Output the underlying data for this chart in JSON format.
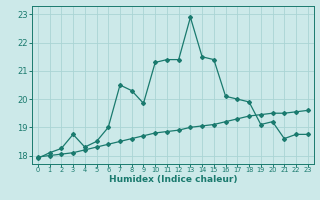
{
  "title": "",
  "xlabel": "Humidex (Indice chaleur)",
  "ylabel": "",
  "bg_color": "#cce9e9",
  "grid_color": "#aad4d4",
  "line_color": "#1a7a6e",
  "xlim": [
    -0.5,
    23.5
  ],
  "ylim": [
    17.7,
    23.3
  ],
  "xticks": [
    0,
    1,
    2,
    3,
    4,
    5,
    6,
    7,
    8,
    9,
    10,
    11,
    12,
    13,
    14,
    15,
    16,
    17,
    18,
    19,
    20,
    21,
    22,
    23
  ],
  "yticks": [
    18,
    19,
    20,
    21,
    22,
    23
  ],
  "line1_x": [
    0,
    1,
    2,
    3,
    4,
    5,
    6,
    7,
    8,
    9,
    10,
    11,
    12,
    13,
    14,
    15,
    16,
    17,
    18,
    19,
    20,
    21,
    22,
    23
  ],
  "line1_y": [
    17.9,
    18.1,
    18.25,
    18.75,
    18.3,
    18.5,
    19.0,
    20.5,
    20.3,
    19.85,
    21.3,
    21.4,
    21.4,
    22.9,
    21.5,
    21.4,
    20.1,
    20.0,
    19.9,
    19.1,
    19.2,
    18.6,
    18.75,
    18.75
  ],
  "line2_x": [
    0,
    1,
    2,
    3,
    4,
    5,
    6,
    7,
    8,
    9,
    10,
    11,
    12,
    13,
    14,
    15,
    16,
    17,
    18,
    19,
    20,
    21,
    22,
    23
  ],
  "line2_y": [
    17.95,
    18.0,
    18.05,
    18.1,
    18.2,
    18.3,
    18.4,
    18.5,
    18.6,
    18.7,
    18.8,
    18.85,
    18.9,
    19.0,
    19.05,
    19.1,
    19.2,
    19.3,
    19.4,
    19.45,
    19.5,
    19.5,
    19.55,
    19.6
  ],
  "xlabel_fontsize": 6.5,
  "xlabel_bold": true,
  "xtick_fontsize": 4.8,
  "ytick_fontsize": 6,
  "marker_size": 2.0,
  "line_width": 0.9
}
